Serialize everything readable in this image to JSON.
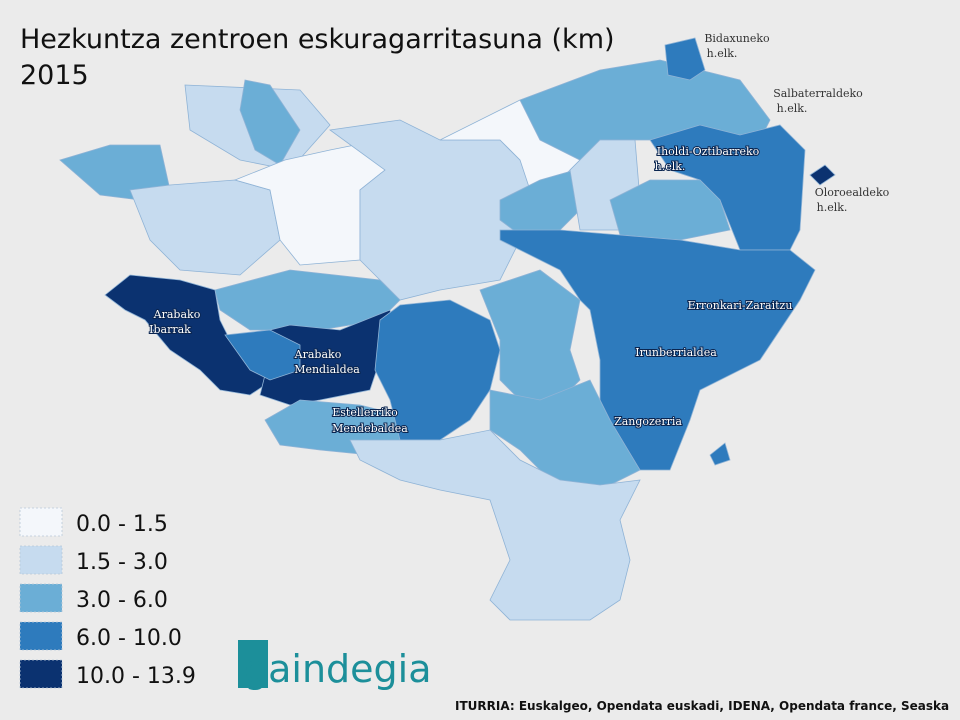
{
  "title": [
    "Hezkuntza zentroen eskuragarritasuna (km)",
    "2015"
  ],
  "legend": {
    "items": [
      {
        "label": "0.0 - 1.5",
        "color": "#f4f7fb"
      },
      {
        "label": "1.5 - 3.0",
        "color": "#c6dbef"
      },
      {
        "label": "3.0 - 6.0",
        "color": "#6baed6"
      },
      {
        "label": "6.0 - 10.0",
        "color": "#2e7bbd"
      },
      {
        "label": "10.0 - 13.9",
        "color": "#0b3270"
      }
    ]
  },
  "regions": [
    {
      "label": [
        "Bidaxuneko",
        "h.elk."
      ]
    },
    {
      "label": [
        "Salbaterraldeko",
        "h.elk."
      ]
    },
    {
      "label": [
        "Iholdi-Oztibarreko",
        "h.elk."
      ]
    },
    {
      "label": [
        "Oloroealdeko",
        "h.elk."
      ]
    },
    {
      "label": [
        "Arabako",
        "Ibarrak"
      ]
    },
    {
      "label": [
        "Arabako",
        "Mendialdea"
      ]
    },
    {
      "label": [
        "Estellerriko",
        "Mendebaldea"
      ]
    },
    {
      "label": [
        "Erronkari-Zaraitzu"
      ]
    },
    {
      "label": [
        "Irunberrialdea"
      ]
    },
    {
      "label": [
        "Zangozerria"
      ]
    }
  ],
  "logo": "gaindegia",
  "source": "ITURRIA: Euskalgeo, Opendata euskadi, IDENA, Opendata france, Seaska"
}
